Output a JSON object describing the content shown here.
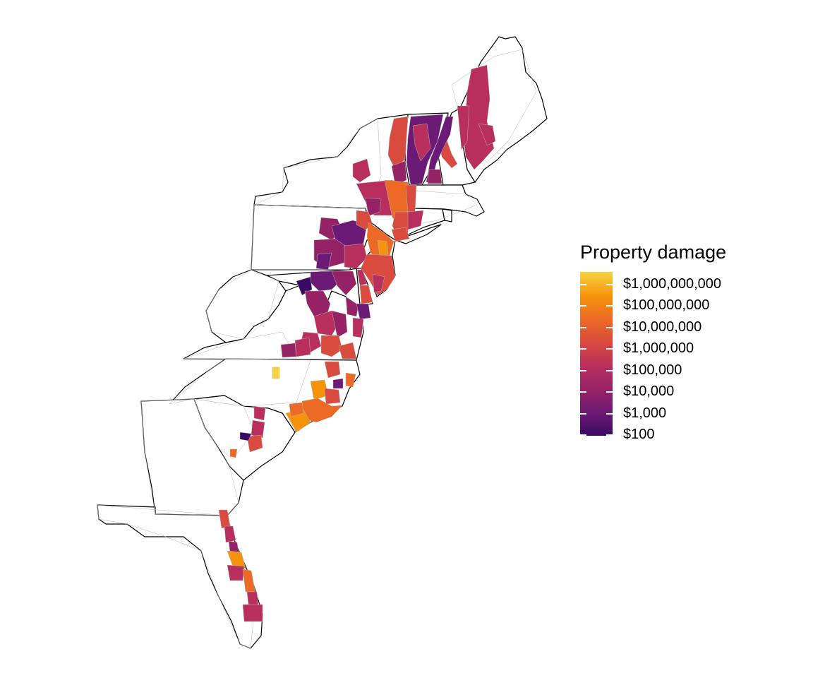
{
  "map": {
    "states": [
      "Maine",
      "New Hampshire",
      "Vermont",
      "Massachusetts",
      "Rhode Island",
      "Connecticut",
      "New York",
      "New Jersey",
      "Pennsylvania",
      "Delaware",
      "Maryland",
      "Virginia",
      "West Virginia",
      "North Carolina",
      "South Carolina",
      "Georgia",
      "Florida"
    ],
    "color_scale": "inferno",
    "no_data_fill": "#ffffff",
    "border_color": "#000000",
    "county_border_color": "#b5b5b5"
  },
  "legend": {
    "title": "Property damage",
    "labels": [
      "$1,000,000,000",
      "$100,000,000",
      "$10,000,000",
      "$1,000,000",
      "$100,000",
      "$10,000",
      "$1,000",
      "$100"
    ],
    "scale": "log10",
    "colors": {
      "high": "#f6d23f",
      "mid_high": "#f6930b",
      "mid": "#d94a3f",
      "mid_low": "#962266",
      "low": "#3a0963"
    }
  }
}
